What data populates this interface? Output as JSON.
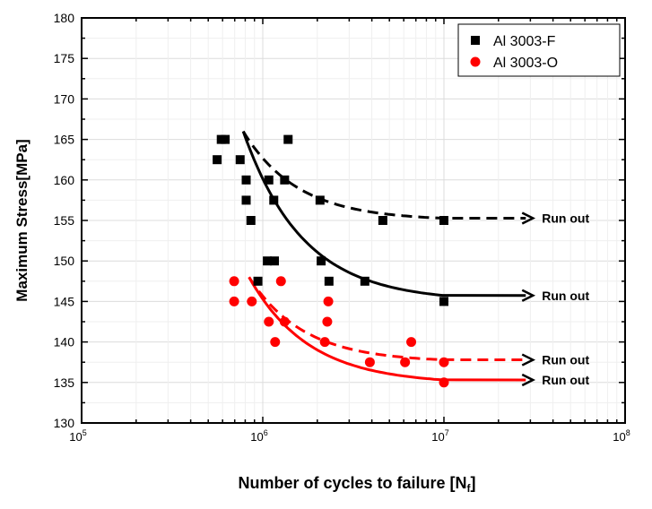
{
  "chart_data": {
    "type": "scatter",
    "xlabel": "Number of cycles to failure [N",
    "xlabel_sub": "f",
    "xlabel_end": "]",
    "ylabel": "Maximum Stress[MPa]",
    "xscale": "log",
    "xlim": [
      100000,
      100000000
    ],
    "ylim": [
      130,
      180
    ],
    "yticks": [
      130,
      135,
      140,
      145,
      150,
      155,
      160,
      165,
      170,
      175,
      180
    ],
    "xticks": [
      {
        "base": "10",
        "exp": "5",
        "value": 100000
      },
      {
        "base": "10",
        "exp": "6",
        "value": 1000000
      },
      {
        "base": "10",
        "exp": "7",
        "value": 10000000
      },
      {
        "base": "10",
        "exp": "8",
        "value": 100000000
      }
    ],
    "grid": true,
    "legend_position": "top-right",
    "series": [
      {
        "name": "Al 3003-F",
        "color": "#000000",
        "marker": "square",
        "points": [
          [
            560000,
            162.5
          ],
          [
            590000,
            165
          ],
          [
            620000,
            165
          ],
          [
            750000,
            162.5
          ],
          [
            810000,
            160
          ],
          [
            810000,
            157.5
          ],
          [
            860000,
            155
          ],
          [
            1080000,
            160
          ],
          [
            1150000,
            157.5
          ],
          [
            1060000,
            150
          ],
          [
            1160000,
            150
          ],
          [
            940000,
            147.5
          ],
          [
            1380000,
            165
          ],
          [
            1320000,
            160
          ],
          [
            2070000,
            157.5
          ],
          [
            2100000,
            150
          ],
          [
            2320000,
            147.5
          ],
          [
            3660000,
            147.5
          ],
          [
            4600000,
            155
          ],
          [
            10000000,
            155
          ],
          [
            10000000,
            145
          ]
        ]
      },
      {
        "name": "Al 3003-O",
        "color": "#ff0000",
        "marker": "circle",
        "points": [
          [
            695000,
            147.5
          ],
          [
            695000,
            145
          ],
          [
            870000,
            145
          ],
          [
            1260000,
            147.5
          ],
          [
            1080000,
            142.5
          ],
          [
            1320000,
            142.5
          ],
          [
            1170000,
            140
          ],
          [
            2300000,
            145
          ],
          [
            2270000,
            142.5
          ],
          [
            2200000,
            140
          ],
          [
            3900000,
            137.5
          ],
          [
            6100000,
            137.5
          ],
          [
            6600000,
            140
          ],
          [
            10000000,
            137.5
          ],
          [
            10000000,
            135
          ]
        ]
      }
    ],
    "fits": [
      {
        "name": "Al 3003-F fit (dashed)",
        "color": "#000000",
        "dashed": true,
        "start_N": 780000,
        "start_S": 166,
        "asymptote": 155,
        "tau_decades": 0.3,
        "end_N": 31000000,
        "label": "Run out"
      },
      {
        "name": "Al 3003-F fit (solid)",
        "color": "#000000",
        "dashed": false,
        "start_N": 780000,
        "start_S": 166,
        "asymptote": 145,
        "tau_decades": 0.33,
        "end_N": 31000000,
        "label": "Run out"
      },
      {
        "name": "Al 3003-O fit (dashed)",
        "color": "#ff0000",
        "dashed": true,
        "start_N": 840000,
        "start_S": 148,
        "asymptote": 137.5,
        "tau_decades": 0.3,
        "end_N": 31000000,
        "label": "Run out"
      },
      {
        "name": "Al 3003-O fit (solid)",
        "color": "#ff0000",
        "dashed": false,
        "start_N": 840000,
        "start_S": 148,
        "asymptote": 134.8,
        "tau_decades": 0.33,
        "end_N": 31000000,
        "label": "Run out"
      }
    ]
  }
}
